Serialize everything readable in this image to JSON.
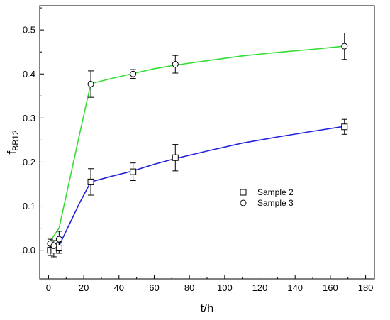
{
  "chart_data": {
    "type": "scatter",
    "xlabel": "t/h",
    "ylabel_main": "f",
    "ylabel_sub": "BB12",
    "xlim": [
      -5,
      185
    ],
    "ylim": [
      -0.065,
      0.555
    ],
    "x_ticks": [
      0,
      20,
      40,
      60,
      80,
      100,
      120,
      140,
      160,
      180
    ],
    "y_ticks": [
      0.0,
      0.1,
      0.2,
      0.3,
      0.4,
      0.5
    ],
    "x_tick_labels": [
      "0",
      "20",
      "40",
      "60",
      "80",
      "100",
      "120",
      "140",
      "160",
      "180"
    ],
    "y_tick_labels": [
      "0.0",
      "0.1",
      "0.2",
      "0.3",
      "0.4",
      "0.5"
    ],
    "grid": false,
    "legend_position": "center-right",
    "series": [
      {
        "name": "Sample 2",
        "marker": "square",
        "line_color": "#2222dd",
        "points": [
          {
            "x": 1,
            "y": 0.0,
            "err": 0.012
          },
          {
            "x": 3,
            "y": 0.0,
            "err": 0.015
          },
          {
            "x": 6,
            "y": 0.005,
            "err": 0.012
          },
          {
            "x": 24,
            "y": 0.155,
            "err": 0.03
          },
          {
            "x": 48,
            "y": 0.178,
            "err": 0.02
          },
          {
            "x": 72,
            "y": 0.21,
            "err": 0.03
          },
          {
            "x": 168,
            "y": 0.28,
            "err": 0.017
          }
        ],
        "curve": [
          [
            0,
            -0.005
          ],
          [
            6,
            0.01
          ],
          [
            12,
            0.06
          ],
          [
            18,
            0.11
          ],
          [
            24,
            0.155
          ],
          [
            36,
            0.168
          ],
          [
            48,
            0.18
          ],
          [
            60,
            0.195
          ],
          [
            72,
            0.208
          ],
          [
            90,
            0.225
          ],
          [
            110,
            0.243
          ],
          [
            130,
            0.257
          ],
          [
            150,
            0.27
          ],
          [
            168,
            0.281
          ]
        ]
      },
      {
        "name": "Sample 3",
        "marker": "circle",
        "line_color": "#33dd33",
        "points": [
          {
            "x": 1,
            "y": 0.015,
            "err": 0.01
          },
          {
            "x": 3,
            "y": 0.01,
            "err": 0.012
          },
          {
            "x": 6,
            "y": 0.025,
            "err": 0.018
          },
          {
            "x": 24,
            "y": 0.377,
            "err": 0.03
          },
          {
            "x": 48,
            "y": 0.4,
            "err": 0.01
          },
          {
            "x": 72,
            "y": 0.422,
            "err": 0.02
          },
          {
            "x": 168,
            "y": 0.463,
            "err": 0.03
          }
        ],
        "curve": [
          [
            0,
            0.015
          ],
          [
            6,
            0.05
          ],
          [
            12,
            0.16
          ],
          [
            18,
            0.27
          ],
          [
            24,
            0.378
          ],
          [
            36,
            0.39
          ],
          [
            48,
            0.401
          ],
          [
            60,
            0.412
          ],
          [
            72,
            0.42
          ],
          [
            90,
            0.43
          ],
          [
            110,
            0.441
          ],
          [
            130,
            0.449
          ],
          [
            150,
            0.456
          ],
          [
            168,
            0.463
          ]
        ]
      }
    ]
  }
}
